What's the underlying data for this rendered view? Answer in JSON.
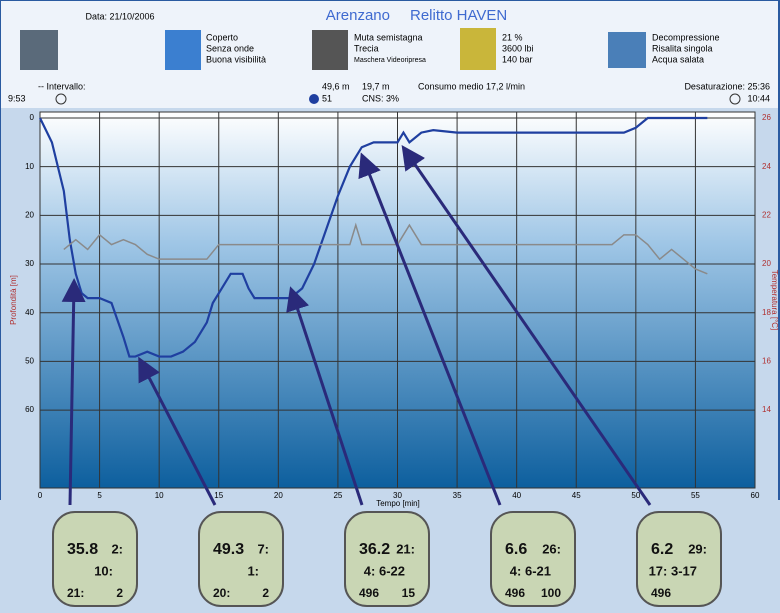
{
  "header": {
    "date": "Data: 21/10/2006",
    "title": "Arenzano",
    "subtitle": "Relitto HAVEN",
    "weather": [
      "Coperto",
      "Senza onde",
      "Buona visibilità"
    ],
    "gear": [
      "Muta semistagna",
      "Trecia",
      "Maschera Videoripresa"
    ],
    "gas": [
      "21 %",
      "3600 lbi",
      "140 bar"
    ],
    "dive": [
      "Decompressione",
      "Risalita singola",
      "Acqua salata"
    ]
  },
  "stats": {
    "interval_label": "-- Intervallo:",
    "interval": "9:53",
    "max_depth": "49,6 m",
    "avg_depth": "19,7 m",
    "dive_number": "51",
    "cns": "CNS: 3%",
    "consumption": "Consumo medio 17,2 l/min",
    "desaturation": "Desaturazione: 25:36",
    "time": "10:44"
  },
  "chart_data": {
    "type": "line",
    "x_label": "Tempo [min]",
    "y_label": "Profondità [m]",
    "y2_label": "Temperatura [°C]",
    "xlim": [
      0,
      60
    ],
    "xticks": [
      0,
      5,
      10,
      15,
      20,
      25,
      30,
      35,
      40,
      45,
      50,
      55,
      60
    ],
    "ylim": [
      76,
      0
    ],
    "yticks": [
      0,
      10,
      20,
      30,
      40,
      50,
      60
    ],
    "y2lim": [
      10.8,
      26
    ],
    "y2ticks": [
      14,
      16,
      18,
      20,
      22,
      24,
      26
    ],
    "grid": true,
    "series": [
      {
        "name": "Profondità",
        "color": "#1f3fa0",
        "x": [
          0,
          1,
          2,
          2.5,
          3,
          3.5,
          4,
          5,
          6,
          7,
          7.5,
          8,
          9,
          10,
          11,
          12,
          13,
          14,
          14.5,
          15,
          16,
          17,
          17.5,
          18,
          19,
          20,
          21,
          22,
          23,
          24,
          25,
          26,
          27,
          28,
          29,
          30,
          30.5,
          31,
          32,
          33,
          35,
          40,
          45,
          49,
          50,
          51,
          55,
          56
        ],
        "values": [
          0,
          5,
          15,
          25,
          32,
          36,
          37,
          37,
          38,
          45,
          49,
          49,
          48,
          49,
          49,
          48,
          46,
          42,
          38,
          36,
          32,
          32,
          35,
          37,
          37,
          37,
          37,
          35,
          30,
          23,
          16,
          10,
          6,
          5,
          5,
          5,
          3,
          5,
          3,
          2.5,
          3,
          3,
          3,
          3,
          2,
          0,
          0,
          0
        ]
      },
      {
        "name": "Temperatura",
        "color": "#8a8a8a",
        "axis": "y2",
        "x": [
          2,
          3,
          4,
          5,
          6,
          7,
          8,
          9,
          10,
          12,
          14,
          15,
          16,
          18,
          20,
          22,
          24,
          26,
          26.5,
          27,
          28,
          30,
          31,
          32,
          35,
          40,
          45,
          48,
          49,
          50,
          51,
          52,
          53,
          54,
          55,
          56
        ],
        "values": [
          20.6,
          21,
          20.6,
          21.2,
          20.8,
          21,
          20.8,
          20.4,
          20.2,
          20.2,
          20.2,
          20.8,
          20.8,
          20.8,
          20.8,
          20.8,
          20.8,
          20.8,
          21.6,
          20.8,
          20.8,
          20.8,
          21.6,
          20.8,
          20.8,
          20.8,
          20.8,
          20.8,
          21.2,
          21.2,
          20.8,
          20.2,
          20.6,
          20.2,
          19.8,
          19.6
        ]
      }
    ]
  },
  "displays": [
    {
      "texts": [
        "35.8",
        "2:",
        "10:",
        "21:",
        "2"
      ]
    },
    {
      "texts": [
        "49.3",
        "7:",
        "1:",
        "20:",
        "2"
      ]
    },
    {
      "texts": [
        "36.2",
        "21:",
        "4: 6-22",
        "496",
        "15"
      ]
    },
    {
      "texts": [
        "6.6",
        "26:",
        "4: 6-21",
        "496",
        "100"
      ]
    },
    {
      "texts": [
        "6.2",
        "29:",
        "17: 3-17",
        "496"
      ]
    }
  ]
}
